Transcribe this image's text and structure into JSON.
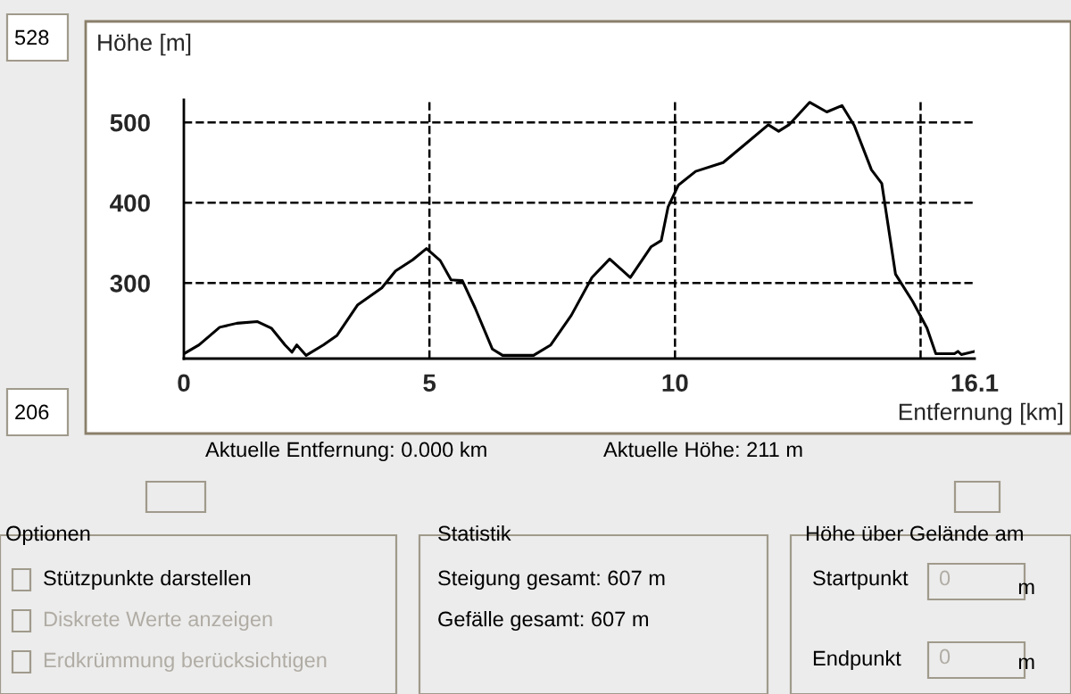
{
  "chart_data": {
    "type": "line",
    "xlabel": "Entfernung [km]",
    "ylabel": "Höhe [m]",
    "x": [
      0,
      0.31,
      0.73,
      1.08,
      1.5,
      1.78,
      2.06,
      2.2,
      2.3,
      2.49,
      2.84,
      3.12,
      3.54,
      4.03,
      4.31,
      4.66,
      4.94,
      5.22,
      5.44,
      5.67,
      5.93,
      6.28,
      6.49,
      7.12,
      7.47,
      7.89,
      8.31,
      8.67,
      9.09,
      9.51,
      9.72,
      9.86,
      10.07,
      10.42,
      10.98,
      11.47,
      11.9,
      12.11,
      12.32,
      12.74,
      13.09,
      13.4,
      13.65,
      14.0,
      14.21,
      14.49,
      14.84,
      15.13,
      15.31,
      15.69,
      15.76,
      15.83,
      16.1
    ],
    "series": [
      {
        "color": "#000000",
        "values": [
          212,
          223,
          245,
          250,
          252,
          244,
          223,
          214,
          223,
          210,
          223,
          235,
          273,
          294,
          315,
          329,
          343,
          328,
          304,
          303,
          269,
          218,
          210,
          210,
          223,
          260,
          307,
          330,
          307,
          345,
          353,
          395,
          422,
          439,
          450,
          475,
          497,
          489,
          497,
          525,
          513,
          521,
          496,
          441,
          424,
          311,
          277,
          244,
          212,
          212,
          215,
          211,
          215
        ]
      }
    ],
    "xlim": [
      0,
      16.1
    ],
    "xticks": [
      0,
      5,
      10,
      {
        "value": 15,
        "label": null
      },
      16.1
    ],
    "ylim": [
      206,
      528
    ],
    "yticks": [
      300,
      400,
      500
    ],
    "grid": true,
    "line_style": "solid",
    "marker": "none",
    "annotations": [
      "528",
      "206",
      "Aktuelle Entfernung: 0.000 km",
      "Aktuelle Höhe: 211 m",
      "Optionen",
      "Stützpunkte darstellen",
      "Diskrete Werte anzeigen",
      "Erdkrümmung berücksichtigen",
      "Statistik",
      "Steigung gesamt: 607 m",
      "Gefälle gesamt: 607 m",
      "Höhe über Gelände am",
      "Startpunkt",
      "m",
      "Endpunkt",
      "m",
      "0",
      "0"
    ]
  }
}
